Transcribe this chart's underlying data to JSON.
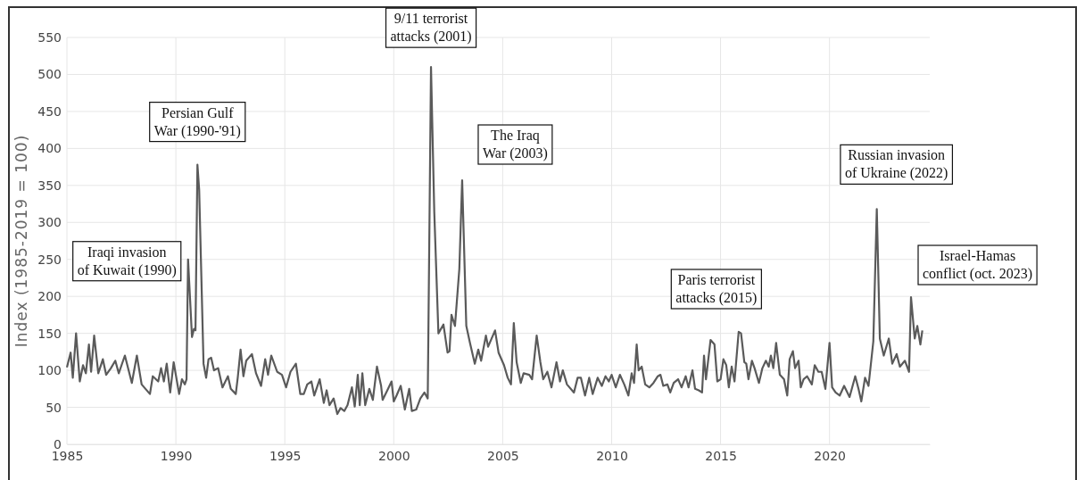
{
  "chart_data": {
    "type": "line",
    "ylabel": "Index (1985-2019 = 100)",
    "xlim": [
      1985,
      2024.6
    ],
    "ylim": [
      0,
      550
    ],
    "xticks": [
      1985,
      1990,
      1995,
      2000,
      2005,
      2010,
      2015,
      2020
    ],
    "yticks": [
      0,
      50,
      100,
      150,
      200,
      250,
      300,
      350,
      400,
      450,
      500,
      550
    ],
    "grid": true,
    "marker": "none",
    "line_style": "solid",
    "annotations": [
      {
        "text": "Iraqi invasion of Kuwait (1990)",
        "x": 1990.56,
        "y": 250
      },
      {
        "text": "Persian Gulf War (1990-'91)",
        "x": 1990.99,
        "y": 378
      },
      {
        "text": "9/11 terrorist attacks (2001)",
        "x": 2001.71,
        "y": 510
      },
      {
        "text": "The Iraq War (2003)",
        "x": 2003.14,
        "y": 357
      },
      {
        "text": "Paris terrorist attacks (2015)",
        "x": 2015.83,
        "y": 152
      },
      {
        "text": "Russian invasion of Ukraine (2022)",
        "x": 2022.17,
        "y": 318
      },
      {
        "text": "Israel-Hamas conflict (oct. 2023)",
        "x": 2023.74,
        "y": 199
      }
    ],
    "series": [
      {
        "color": "#5a5a5a",
        "x": [
          1985.0,
          1985.17,
          1985.27,
          1985.42,
          1985.59,
          1985.74,
          1985.87,
          1986.01,
          1986.11,
          1986.25,
          1986.44,
          1986.65,
          1986.8,
          1987.02,
          1987.22,
          1987.38,
          1987.66,
          1987.98,
          1988.21,
          1988.43,
          1988.81,
          1988.94,
          1989.19,
          1989.32,
          1989.45,
          1989.58,
          1989.74,
          1989.9,
          1990.15,
          1990.28,
          1990.41,
          1990.49,
          1990.56,
          1990.74,
          1990.83,
          1990.9,
          1990.99,
          1991.07,
          1991.27,
          1991.39,
          1991.5,
          1991.62,
          1991.75,
          1991.94,
          1992.14,
          1992.39,
          1992.52,
          1992.75,
          1992.84,
          1992.97,
          1993.1,
          1993.23,
          1993.49,
          1993.68,
          1993.91,
          1994.1,
          1994.23,
          1994.38,
          1994.65,
          1994.87,
          1995.06,
          1995.26,
          1995.51,
          1995.71,
          1995.87,
          1996.03,
          1996.22,
          1996.35,
          1996.6,
          1996.79,
          1996.92,
          1997.05,
          1997.24,
          1997.41,
          1997.56,
          1997.73,
          1997.88,
          1998.08,
          1998.21,
          1998.35,
          1998.44,
          1998.56,
          1998.69,
          1998.88,
          1999.04,
          1999.23,
          1999.42,
          1999.49,
          1999.74,
          1999.9,
          2000.0,
          2000.13,
          2000.32,
          2000.51,
          2000.71,
          2000.83,
          2001.03,
          2001.22,
          2001.41,
          2001.56,
          2001.71,
          2001.86,
          2002.05,
          2002.28,
          2002.47,
          2002.56,
          2002.65,
          2002.81,
          2003.01,
          2003.14,
          2003.33,
          2003.5,
          2003.72,
          2003.88,
          2004.01,
          2004.23,
          2004.33,
          2004.65,
          2004.81,
          2005.06,
          2005.23,
          2005.38,
          2005.51,
          2005.64,
          2005.83,
          2005.96,
          2006.22,
          2006.35,
          2006.56,
          2006.73,
          2006.86,
          2007.05,
          2007.24,
          2007.47,
          2007.63,
          2007.76,
          2007.95,
          2008.27,
          2008.44,
          2008.59,
          2008.78,
          2008.97,
          2009.13,
          2009.36,
          2009.55,
          2009.72,
          2009.87,
          2010.0,
          2010.19,
          2010.38,
          2010.58,
          2010.77,
          2010.92,
          2011.03,
          2011.15,
          2011.24,
          2011.38,
          2011.54,
          2011.73,
          2011.92,
          2012.12,
          2012.24,
          2012.37,
          2012.56,
          2012.69,
          2012.85,
          2013.05,
          2013.21,
          2013.4,
          2013.53,
          2013.71,
          2013.83,
          2014.0,
          2014.15,
          2014.24,
          2014.33,
          2014.54,
          2014.72,
          2014.85,
          2015.0,
          2015.13,
          2015.26,
          2015.38,
          2015.51,
          2015.64,
          2015.83,
          2015.94,
          2016.09,
          2016.18,
          2016.28,
          2016.44,
          2016.56,
          2016.76,
          2016.92,
          2017.08,
          2017.21,
          2017.31,
          2017.42,
          2017.55,
          2017.72,
          2017.91,
          2018.06,
          2018.17,
          2018.32,
          2018.42,
          2018.58,
          2018.68,
          2018.81,
          2018.97,
          2019.19,
          2019.32,
          2019.49,
          2019.64,
          2019.81,
          2020.0,
          2020.12,
          2020.28,
          2020.47,
          2020.67,
          2020.92,
          2021.18,
          2021.33,
          2021.46,
          2021.63,
          2021.79,
          2022.01,
          2022.17,
          2022.31,
          2022.49,
          2022.72,
          2022.88,
          2023.08,
          2023.23,
          2023.46,
          2023.65,
          2023.74,
          2023.91,
          2024.03,
          2024.17,
          2024.26
        ],
        "values": [
          104,
          124,
          90,
          150,
          85,
          107,
          96,
          135,
          98,
          147,
          96,
          115,
          94,
          103,
          113,
          96,
          120,
          83,
          120,
          81,
          68,
          92,
          85,
          103,
          85,
          109,
          70,
          111,
          68,
          88,
          81,
          88,
          250,
          145,
          156,
          154,
          378,
          344,
          109,
          90,
          115,
          117,
          100,
          103,
          77,
          92,
          75,
          68,
          90,
          128,
          92,
          113,
          122,
          96,
          79,
          115,
          94,
          120,
          98,
          94,
          77,
          98,
          109,
          68,
          68,
          81,
          85,
          66,
          88,
          56,
          73,
          53,
          62,
          41,
          49,
          45,
          53,
          77,
          51,
          94,
          53,
          96,
          53,
          75,
          60,
          105,
          79,
          60,
          75,
          85,
          58,
          66,
          79,
          47,
          75,
          45,
          47,
          62,
          70,
          62,
          510,
          314,
          150,
          162,
          124,
          126,
          175,
          160,
          237,
          357,
          160,
          137,
          109,
          128,
          113,
          147,
          132,
          154,
          124,
          107,
          90,
          81,
          164,
          111,
          83,
          96,
          94,
          88,
          147,
          111,
          88,
          98,
          77,
          111,
          85,
          100,
          81,
          70,
          90,
          90,
          66,
          90,
          68,
          90,
          79,
          92,
          85,
          94,
          77,
          94,
          81,
          66,
          96,
          83,
          135,
          100,
          105,
          81,
          77,
          83,
          92,
          94,
          79,
          81,
          70,
          83,
          88,
          77,
          92,
          77,
          100,
          75,
          73,
          70,
          120,
          88,
          141,
          135,
          85,
          88,
          115,
          107,
          77,
          105,
          85,
          152,
          150,
          111,
          109,
          88,
          113,
          103,
          83,
          103,
          113,
          105,
          120,
          103,
          137,
          94,
          88,
          66,
          115,
          126,
          103,
          113,
          77,
          88,
          92,
          81,
          107,
          98,
          98,
          75,
          137,
          77,
          70,
          66,
          79,
          64,
          92,
          75,
          58,
          90,
          79,
          139,
          318,
          143,
          120,
          143,
          109,
          122,
          105,
          113,
          98,
          199,
          143,
          160,
          135,
          154
        ]
      }
    ]
  }
}
